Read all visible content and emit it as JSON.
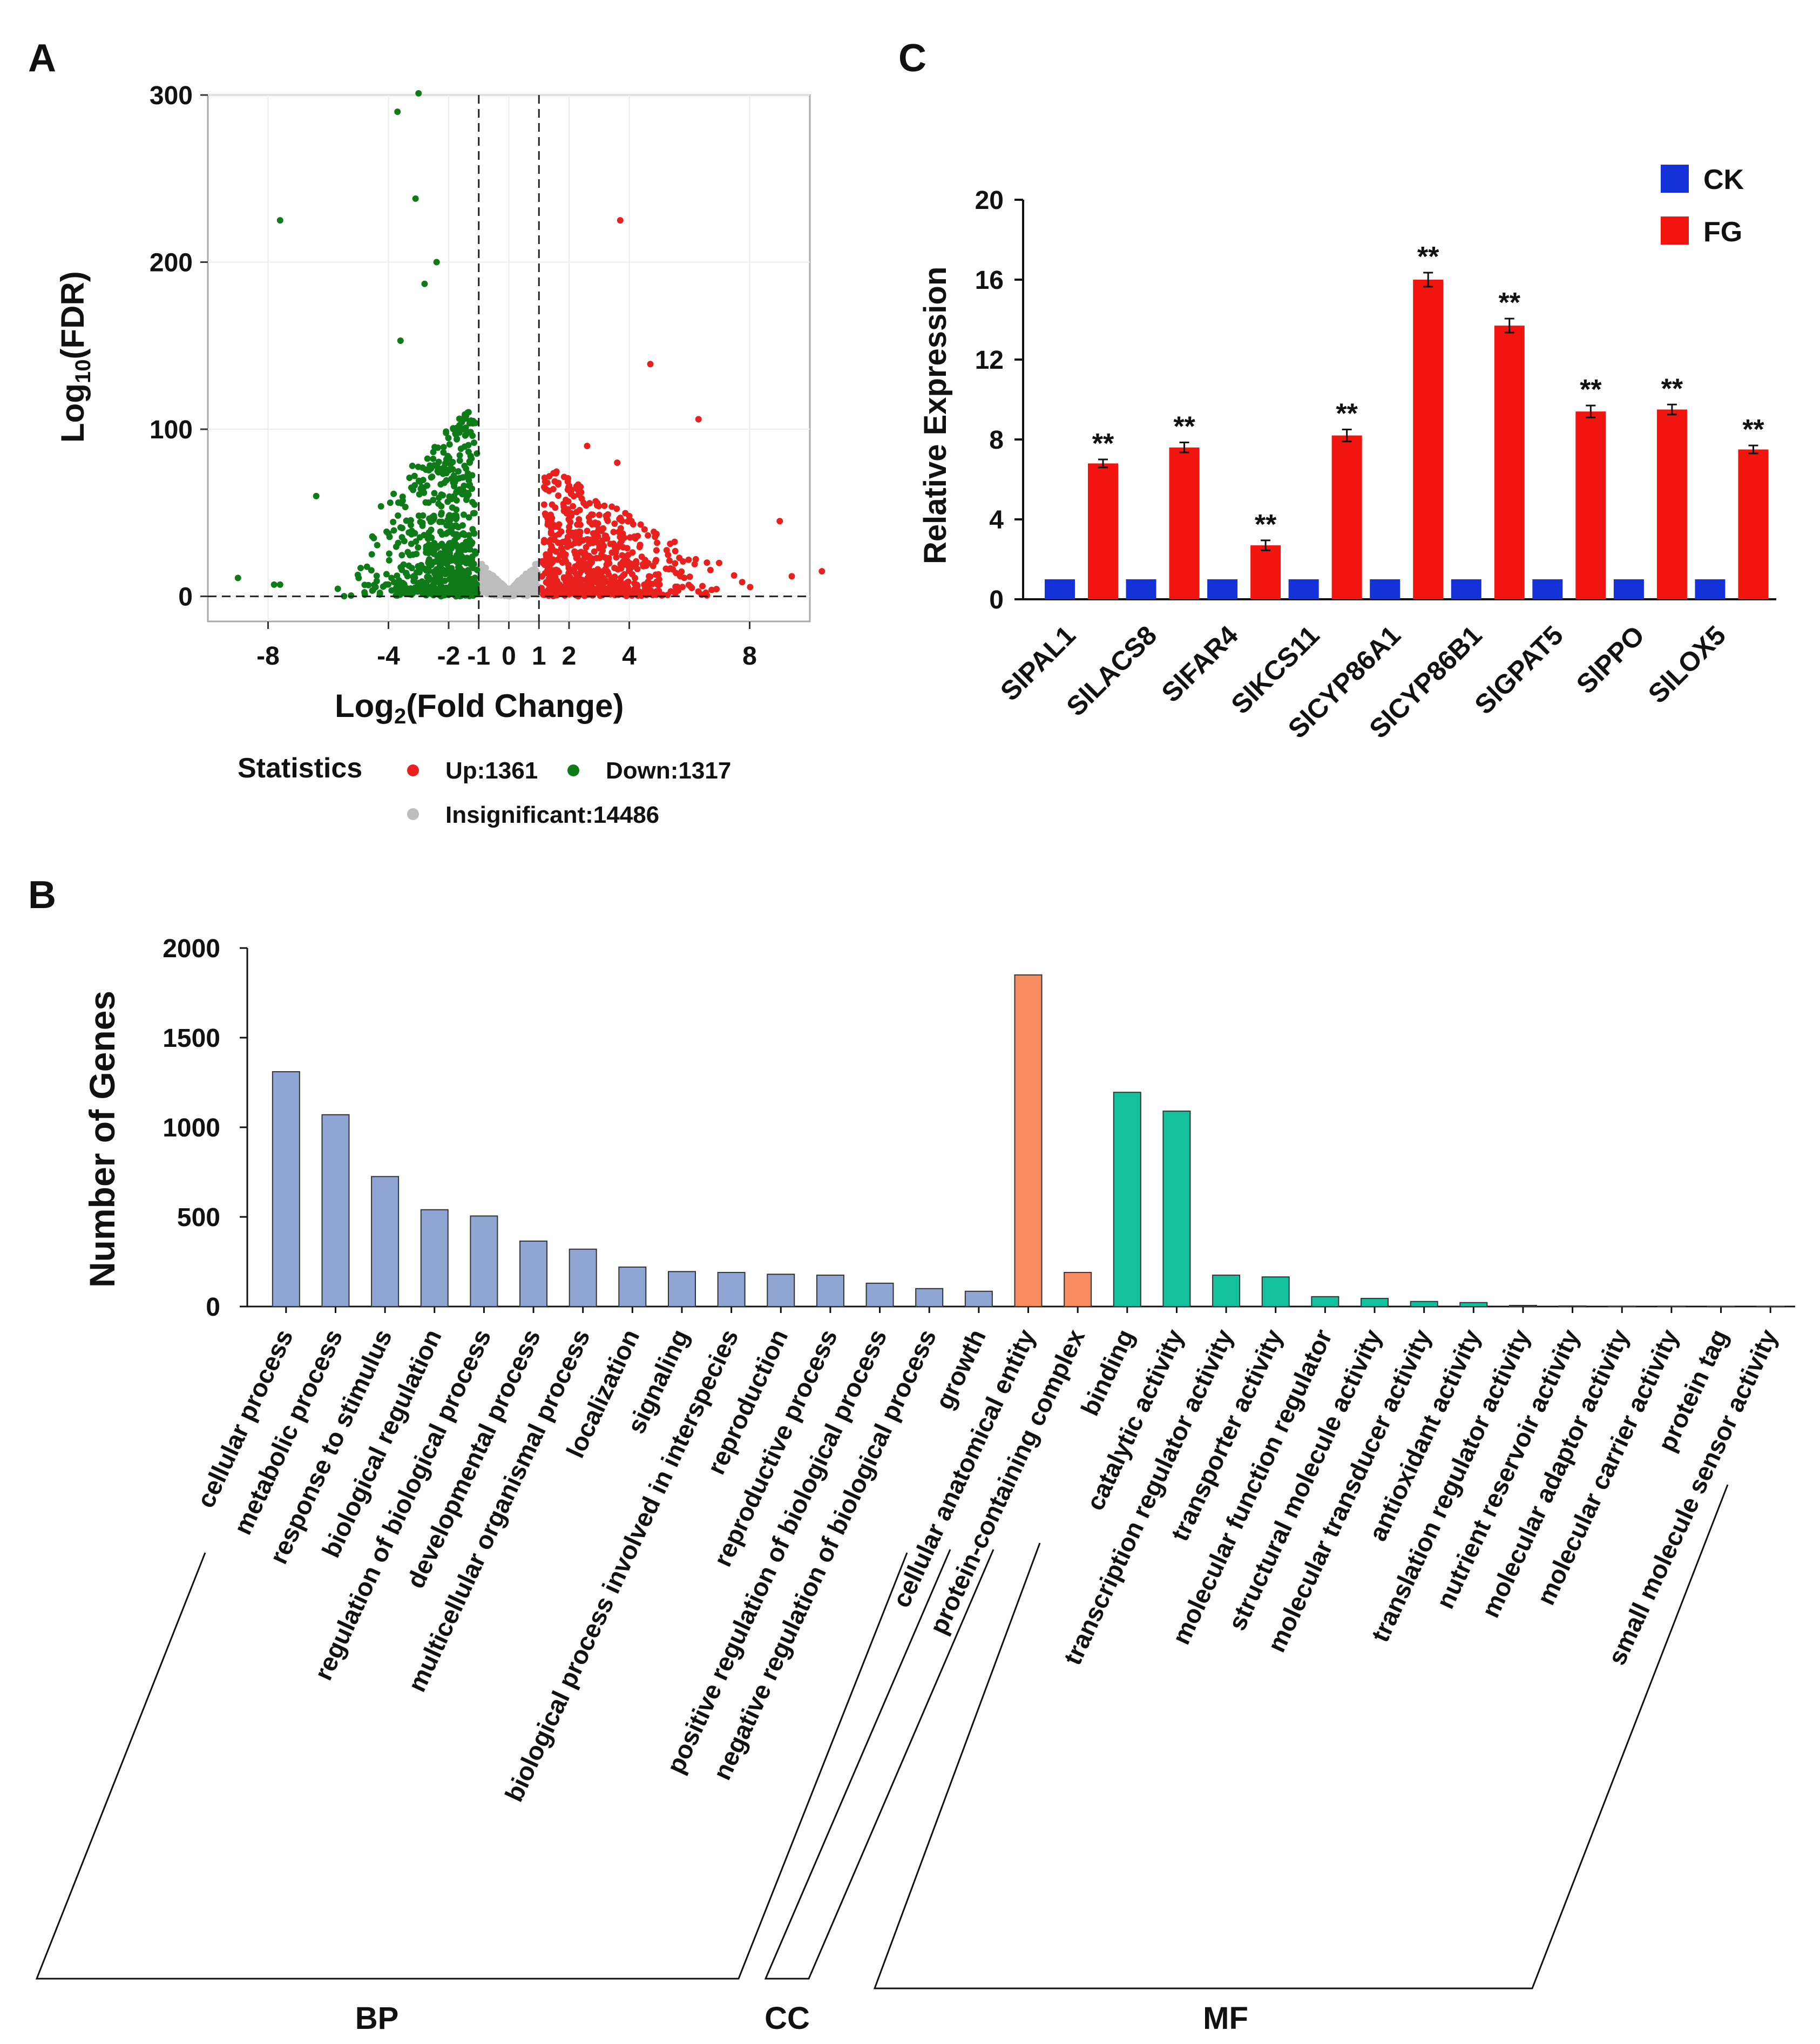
{
  "colors": {
    "up": "#E8201E",
    "down": "#0E7A18",
    "insignificant": "#BDBDBD",
    "ck": "#1432D8",
    "fg": "#F2150F",
    "bp": "#8FA5D3",
    "cc": "#F98C61",
    "mf": "#14C19E"
  },
  "panels": {
    "a": "A",
    "b": "B",
    "c": "C"
  },
  "chart_data": [
    {
      "type": "scatter",
      "panel": "A",
      "title": "",
      "xlabel": "Log2(Fold Change)",
      "ylabel": "Log10(FDR)",
      "xlim": [
        -10,
        10
      ],
      "ylim": [
        -15,
        300
      ],
      "x_ticks": [
        -8,
        -4,
        -2,
        -1,
        0,
        1,
        2,
        4,
        8
      ],
      "y_ticks": [
        0,
        100,
        200,
        300
      ],
      "thresholds": {
        "x": [
          -1,
          1
        ],
        "y": 0
      },
      "legend": {
        "title": "Statistics",
        "up": "Up:1361",
        "down": "Down:1317",
        "insignificant": "Insignificant:14486"
      },
      "series": [
        {
          "name": "Up",
          "count": 1361
        },
        {
          "name": "Down",
          "count": 1317
        },
        {
          "name": "Insignificant",
          "count": 14486
        }
      ],
      "highlighted_points": {
        "down": [
          [
            -3.0,
            301
          ],
          [
            -3.7,
            290
          ],
          [
            -3.1,
            238
          ],
          [
            -7.6,
            225
          ],
          [
            -2.4,
            200
          ],
          [
            -2.8,
            187
          ],
          [
            -3.6,
            153
          ],
          [
            -6.4,
            60
          ],
          [
            -9.0,
            11
          ],
          [
            -7.8,
            7
          ],
          [
            -7.6,
            7
          ]
        ],
        "up": [
          [
            3.7,
            225
          ],
          [
            4.7,
            139
          ],
          [
            6.3,
            106
          ],
          [
            9.4,
            12
          ],
          [
            10.4,
            15
          ],
          [
            9.0,
            45
          ],
          [
            2.6,
            90
          ],
          [
            3.6,
            80
          ]
        ]
      }
    },
    {
      "type": "bar",
      "panel": "B",
      "title": "",
      "ylabel": "Number of Genes",
      "ylim": [
        0,
        2000
      ],
      "y_ticks": [
        0,
        500,
        1000,
        1500,
        2000
      ],
      "categories": [
        "cellular process",
        "metabolic process",
        "response to stimulus",
        "biological regulation",
        "regulation of biological process",
        "developmental process",
        "multicellular organismal process",
        "localization",
        "signaling",
        "biological process involved in interspecies",
        "reproduction",
        "reproductive process",
        "positive regulation of biological process",
        "negative regulation of biological process",
        "growth",
        "cellular anatomical entity",
        "protein-containing complex",
        "binding",
        "catalytic activity",
        "transcription regulator activity",
        "transporter activity",
        "molecular function regulator",
        "structural molecule activity",
        "molecular transducer activity",
        "antioxidant activity",
        "translation regulator activity",
        "nutrient reservoir activity",
        "molecular adaptor activity",
        "molecular carrier activity",
        "protein tag",
        "small molecule sensor activity"
      ],
      "values": [
        1310,
        1070,
        725,
        540,
        505,
        365,
        320,
        220,
        195,
        190,
        180,
        175,
        130,
        100,
        85,
        1850,
        190,
        1195,
        1090,
        175,
        165,
        55,
        45,
        28,
        22,
        6,
        3,
        2,
        2,
        1,
        1
      ],
      "groups": [
        {
          "name": "BP",
          "start": 0,
          "end": 14
        },
        {
          "name": "CC",
          "start": 15,
          "end": 16
        },
        {
          "name": "MF",
          "start": 17,
          "end": 30
        }
      ]
    },
    {
      "type": "bar",
      "panel": "C",
      "title": "",
      "ylabel": "Relative Expression",
      "ylim": [
        0,
        20
      ],
      "y_ticks": [
        0,
        4,
        8,
        12,
        16,
        20
      ],
      "categories": [
        "SlPAL1",
        "SlLACS8",
        "SlFAR4",
        "SlKCS11",
        "SlCYP86A1",
        "SlCYP86B1",
        "SlGPAT5",
        "SlPPO",
        "SlLOX5"
      ],
      "series": [
        {
          "name": "CK",
          "values": [
            1,
            1,
            1,
            1,
            1,
            1,
            1,
            1,
            1
          ],
          "errors": [
            0.05,
            0.05,
            0.05,
            0.05,
            0.05,
            0.05,
            0.05,
            0.05,
            0.05
          ]
        },
        {
          "name": "FG",
          "values": [
            6.8,
            7.6,
            2.7,
            8.2,
            16.0,
            13.7,
            9.4,
            9.5,
            7.5
          ],
          "errors": [
            0.2,
            0.25,
            0.25,
            0.3,
            0.35,
            0.35,
            0.3,
            0.25,
            0.2
          ]
        }
      ],
      "annotation": "**",
      "legend": [
        "CK",
        "FG"
      ]
    }
  ]
}
